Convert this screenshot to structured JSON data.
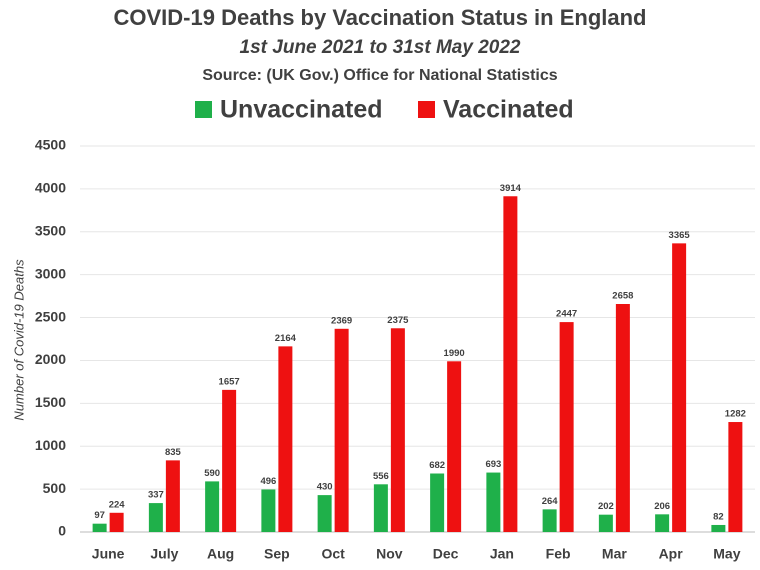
{
  "chart_data": {
    "type": "bar",
    "title": "COVID-19 Deaths by Vaccination Status in England",
    "subtitle": "1st June 2021 to 31st May 2022",
    "source": "Source: (UK Gov.) Office for National Statistics",
    "y_label": "Number of Covid-19 Deaths",
    "categories": [
      "June",
      "July",
      "Aug",
      "Sep",
      "Oct",
      "Nov",
      "Dec",
      "Jan",
      "Feb",
      "Mar",
      "Apr",
      "May"
    ],
    "series": [
      {
        "name": "Unvaccinated",
        "color": "#1fb04a",
        "values": [
          97,
          337,
          590,
          496,
          430,
          556,
          682,
          693,
          264,
          202,
          206,
          82
        ]
      },
      {
        "name": "Vaccinated",
        "color": "#ee1111",
        "values": [
          224,
          835,
          1657,
          2164,
          2369,
          2375,
          1990,
          3914,
          2447,
          2658,
          3365,
          1282
        ]
      }
    ],
    "ylim": [
      0,
      4500
    ],
    "yticks": [
      0,
      500,
      1000,
      1500,
      2000,
      2500,
      3000,
      3500,
      4000,
      4500
    ],
    "grid": true,
    "legend_position": "top"
  }
}
